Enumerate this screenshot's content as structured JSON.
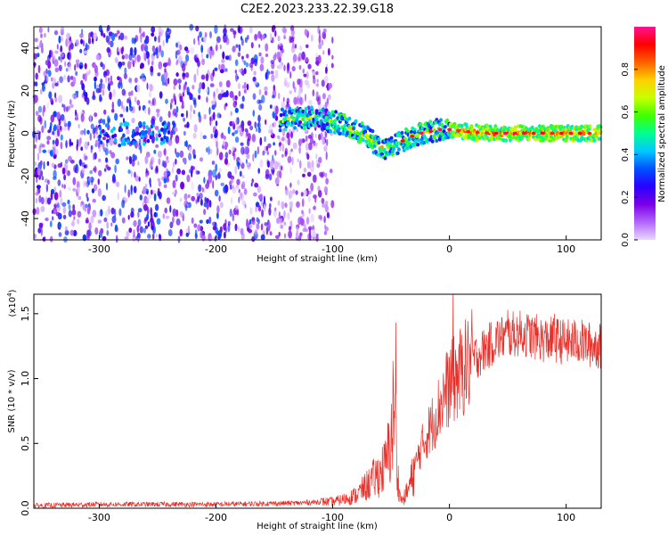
{
  "title": "C2E2.2023.233.22.39.G18",
  "chart_data": [
    {
      "type": "heatmap",
      "xlabel": "Height of straight line (km)",
      "ylabel": "Frequency (Hz)",
      "xlim": [
        -356,
        130
      ],
      "ylim": [
        -50,
        50
      ],
      "xticks": [
        -300,
        -200,
        -100,
        0,
        100
      ],
      "yticks": [
        -40,
        -20,
        0,
        20,
        40
      ],
      "colorbar": {
        "label": "Normalized spectral amplitude",
        "range": [
          0,
          1
        ],
        "ticks": [
          "0.0",
          "0.2",
          "0.4",
          "0.6",
          "0.8"
        ],
        "colors": [
          "#e8d8ff",
          "#b266ff",
          "#7a00e6",
          "#2a00ff",
          "#0050ff",
          "#00c8ff",
          "#00ff90",
          "#40ff00",
          "#c8ff00",
          "#ffd000",
          "#ff6000",
          "#ff0000",
          "#ff1090"
        ]
      },
      "ridge": {
        "x": [
          -145,
          -135,
          -125,
          -115,
          -105,
          -95,
          -85,
          -75,
          -65,
          -55,
          -45,
          -35,
          -25,
          -15,
          -5,
          5,
          20,
          40,
          60,
          80,
          100,
          130
        ],
        "y": [
          6,
          7,
          7,
          8,
          6,
          5,
          2,
          0,
          -4,
          -8,
          -5,
          -2,
          0,
          1,
          2,
          1.5,
          0.5,
          0,
          0,
          0,
          0,
          0
        ]
      },
      "noise_cluster": {
        "x": [
          -300,
          -240
        ],
        "y": [
          -5,
          5
        ]
      }
    },
    {
      "type": "line",
      "xlabel": "Height of straight line (km)",
      "ylabel": "SNR (10 * v/v)",
      "yscale_label": "(x10",
      "yscale_exp": "4",
      "xlim": [
        -356,
        130
      ],
      "ylim": [
        0,
        16500
      ],
      "xticks": [
        -300,
        -200,
        -100,
        0,
        100
      ],
      "yticks": [
        0,
        5000,
        10000,
        15000
      ],
      "ytick_labels": [
        "0.0",
        "0.5",
        "1.0",
        "1.5"
      ],
      "series": [
        {
          "color": "#e8302a",
          "x": [
            -356,
            -300,
            -200,
            -130,
            -110,
            -100,
            -90,
            -80,
            -70,
            -60,
            -55,
            -50,
            -47,
            -45,
            -42,
            -40,
            -35,
            -30,
            -25,
            -20,
            -15,
            -10,
            -5,
            0,
            5,
            10,
            20,
            30,
            40,
            50,
            60,
            70,
            80,
            90,
            100,
            110,
            120,
            130
          ],
          "y": [
            200,
            300,
            300,
            400,
            500,
            500,
            700,
            1000,
            1800,
            2700,
            3200,
            5200,
            8500,
            3000,
            800,
            600,
            1500,
            3000,
            4500,
            5500,
            6500,
            7500,
            8700,
            9500,
            10000,
            10500,
            11500,
            12200,
            13000,
            13300,
            13500,
            13300,
            13000,
            13000,
            12800,
            12900,
            12600,
            12500
          ]
        }
      ],
      "spikes": [
        {
          "x": -46,
          "y": 14300
        },
        {
          "x": 3,
          "y": 16600
        },
        {
          "x": 50,
          "y": 15300
        },
        {
          "x": 90,
          "y": 15000
        }
      ]
    }
  ]
}
